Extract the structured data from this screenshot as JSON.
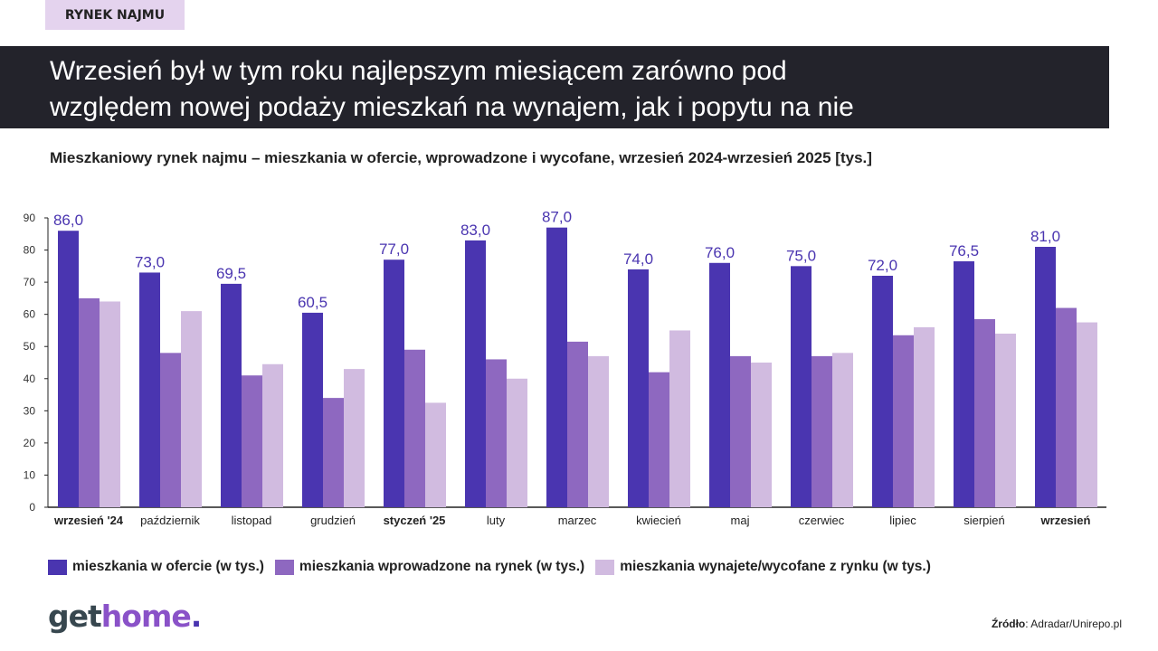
{
  "tag": "RYNEK NAJMU",
  "headline": [
    "Wrzesień był w tym roku najlepszym miesiącem zarówno pod",
    "względem nowej podaży mieszkań na wynajem, jak i popytu na nie"
  ],
  "logo": {
    "part1": "get",
    "part2": "home",
    "part3": "."
  },
  "source": {
    "label": "Źródło",
    "text": ": Adradar/Unirepo.pl"
  },
  "colors": {
    "series1": "#4a35b0",
    "series2": "#8e68c0",
    "series3": "#d1bbe0",
    "label": "#4a35b0"
  },
  "chart_data": {
    "type": "bar",
    "title": "Mieszkaniowy rynek najmu – mieszkania w ofercie, wprowadzone i wycofane, wrzesień 2024-wrzesień 2025 [tys.]",
    "categories": [
      "wrzesień '24",
      "październik",
      "listopad",
      "grudzień",
      "styczeń '25",
      "luty",
      "marzec",
      "kwiecień",
      "maj",
      "czerwiec",
      "lipiec",
      "sierpień",
      "wrzesień"
    ],
    "bold_categories": [
      0,
      4,
      12
    ],
    "ylim": [
      0,
      90
    ],
    "yticks": [
      0,
      10,
      20,
      30,
      40,
      50,
      60,
      70,
      80,
      90
    ],
    "grid": false,
    "legend": "bottom",
    "series": [
      {
        "name": "mieszkania w ofercie (w tys.)",
        "values": [
          86.0,
          73.0,
          69.5,
          60.5,
          77.0,
          83.0,
          87.0,
          74.0,
          76.0,
          75.0,
          72.0,
          76.5,
          81.0
        ],
        "labels": [
          "86,0",
          "73,0",
          "69,5",
          "60,5",
          "77,0",
          "83,0",
          "87,0",
          "74,0",
          "76,0",
          "75,0",
          "72,0",
          "76,5",
          "81,0"
        ]
      },
      {
        "name": "mieszkania wprowadzone na rynek (w tys.)",
        "values": [
          65,
          48,
          41,
          34,
          49,
          46,
          51.5,
          42,
          47,
          47,
          53.5,
          58.5,
          62
        ]
      },
      {
        "name": "mieszkania wynajete/wycofane z rynku (w tys.)",
        "values": [
          64,
          61,
          44.5,
          43,
          32.5,
          40,
          47,
          55,
          45,
          48,
          56,
          54,
          57.5
        ]
      }
    ]
  }
}
